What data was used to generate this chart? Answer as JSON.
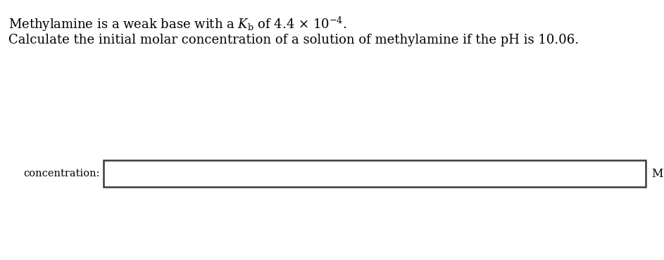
{
  "line1": "Methylamine is a weak base with a $K_\\mathrm{b}$ of 4.4 × 10$^{-4}$.",
  "line2": "Calculate the initial molar concentration of a solution of methylamine if the pH is 10.06.",
  "label_concentration": "concentration:",
  "label_M": "M",
  "bg_color": "#ffffff",
  "text_color": "#000000",
  "box_edge_color": "#3a3a3a",
  "font_size_text": 13,
  "font_size_label": 10.5
}
